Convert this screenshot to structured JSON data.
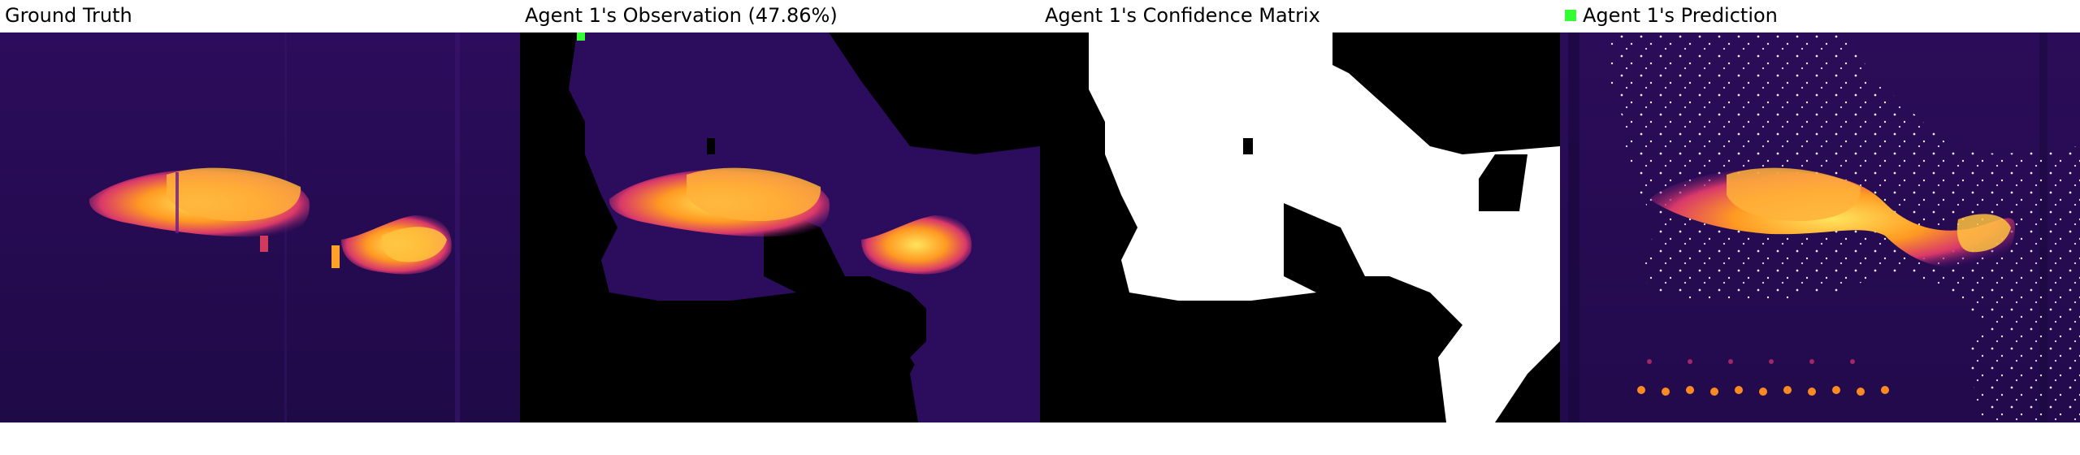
{
  "panels": [
    {
      "title": "Ground Truth"
    },
    {
      "title": "Agent 1's Observation (47.86%)"
    },
    {
      "title": "Agent 1's Confidence Matrix"
    },
    {
      "title": "Agent 1's Prediction",
      "legend_color": "#33ff33"
    }
  ],
  "colors": {
    "background_dark": "#2a0b57",
    "mask_black": "#000000",
    "mask_white": "#ffffff",
    "hot_yellow": "#ffcc33",
    "hot_orange": "#ff7a1a",
    "warm_red": "#b8195a",
    "prediction_points": "#ffffff",
    "agent_marker": "#33ff33"
  }
}
